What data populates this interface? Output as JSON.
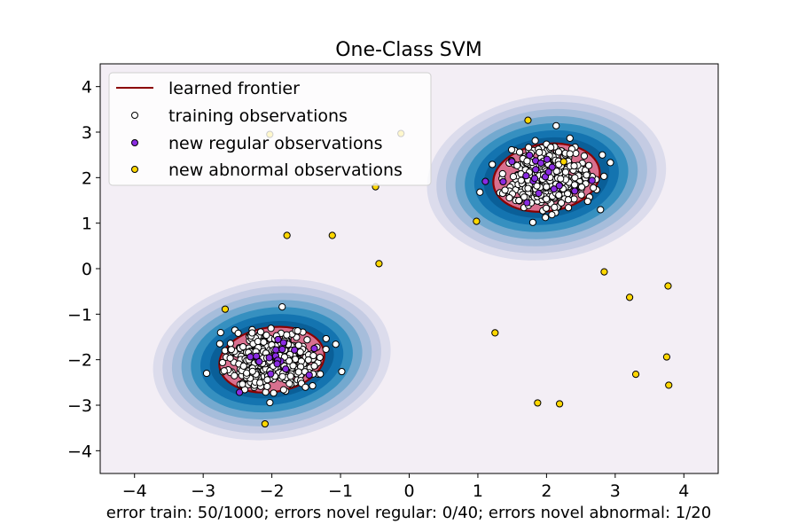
{
  "chart_data": {
    "type": "scatter",
    "title": "One-Class SVM",
    "xlabel": "error train: 50/1000; errors novel regular: 0/40; errors novel abnormal: 1/20",
    "ylabel": "",
    "xlim": [
      -4.5,
      4.5
    ],
    "ylim": [
      -4.5,
      4.5
    ],
    "xticks": [
      -4,
      -3,
      -2,
      -1,
      0,
      1,
      2,
      3,
      4
    ],
    "yticks": [
      -4,
      -3,
      -2,
      -1,
      0,
      1,
      2,
      3,
      4
    ],
    "xtick_labels": [
      "−4",
      "−3",
      "−2",
      "−1",
      "0",
      "1",
      "2",
      "3",
      "4"
    ],
    "ytick_labels": [
      "−4",
      "−3",
      "−2",
      "−1",
      "0",
      "1",
      "2",
      "3",
      "4"
    ],
    "grid": false,
    "legend": {
      "placement": "top-left",
      "entries": [
        "learned frontier",
        "training observations",
        "new regular observations",
        "new abnormal observations"
      ]
    },
    "colors": {
      "background": "#f3eef5",
      "contour_levels": [
        "#dcdcec",
        "#c4cbe3",
        "#a6bddb",
        "#74a9cf",
        "#3690c0",
        "#1474b0",
        "#0a5f98"
      ],
      "inside_fill": "#d9708f",
      "frontier": "#8b0000",
      "training": "#ffffff",
      "new_regular": "#8a2be2",
      "new_abnormal": "#ffd700"
    },
    "clusters": [
      {
        "center": [
          2.0,
          2.0
        ],
        "frontier_semi_axes": [
          0.78,
          0.74
        ],
        "outer_semi_axes": [
          1.75,
          1.8
        ]
      },
      {
        "center": [
          -2.0,
          -2.0
        ],
        "frontier_semi_axes": [
          0.77,
          0.71
        ],
        "outer_semi_axes": [
          1.74,
          1.75
        ]
      }
    ],
    "training": {
      "count": 1000,
      "std": 0.3,
      "visible_outliers": [
        [
          2.14,
          3.14
        ],
        [
          2.93,
          2.33
        ],
        [
          -1.85,
          -0.84
        ],
        [
          -1.07,
          -1.66
        ],
        [
          -2.95,
          -2.3
        ],
        [
          1.03,
          1.68
        ],
        [
          1.21,
          2.29
        ]
      ]
    },
    "new_regular": {
      "count": 40,
      "std": 0.3
    },
    "new_abnormal": [
      [
        -2.03,
        2.95
      ],
      [
        -0.12,
        2.97
      ],
      [
        -0.49,
        1.8
      ],
      [
        -1.78,
        0.73
      ],
      [
        -1.12,
        0.73
      ],
      [
        -0.44,
        0.11
      ],
      [
        0.98,
        1.04
      ],
      [
        1.73,
        3.26
      ],
      [
        2.84,
        -0.07
      ],
      [
        3.21,
        -0.63
      ],
      [
        3.77,
        -0.38
      ],
      [
        1.25,
        -1.41
      ],
      [
        3.75,
        -1.94
      ],
      [
        3.3,
        -2.32
      ],
      [
        3.78,
        -2.56
      ],
      [
        1.87,
        -2.95
      ],
      [
        2.19,
        -2.97
      ],
      [
        -2.1,
        -3.41
      ],
      [
        -2.68,
        -0.89
      ],
      [
        2.25,
        2.35
      ]
    ]
  }
}
